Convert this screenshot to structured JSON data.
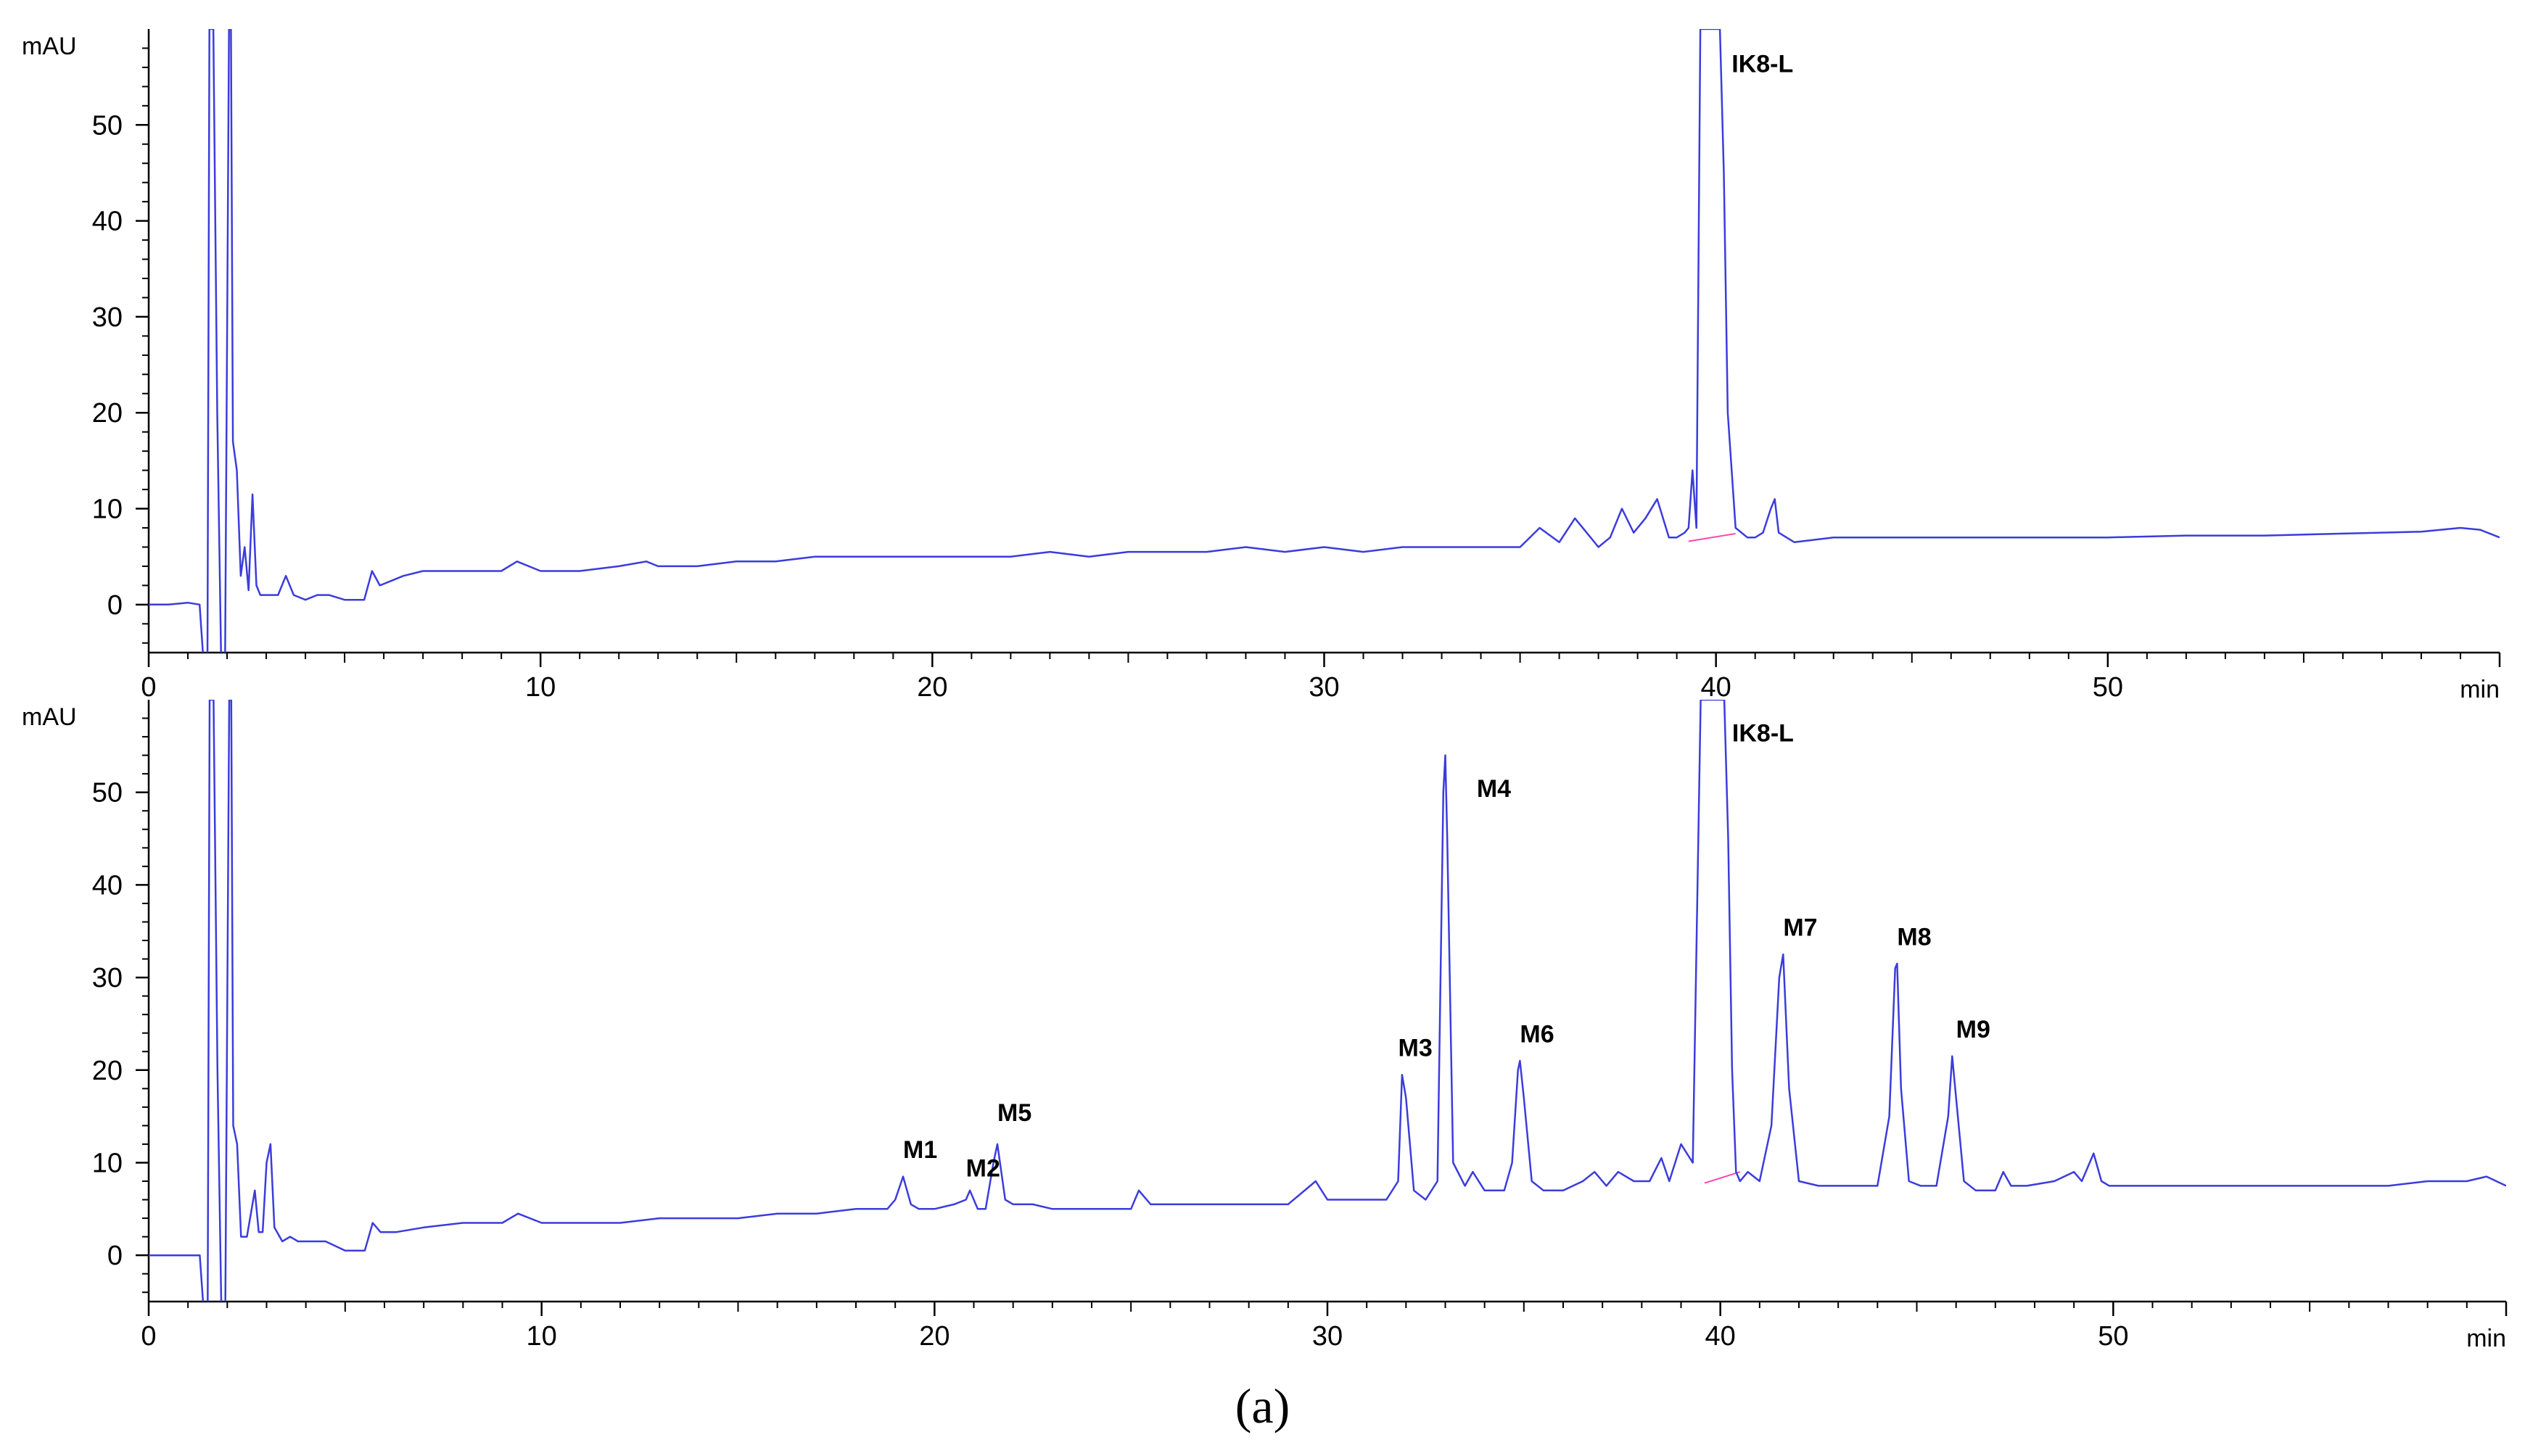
{
  "caption": "(a)",
  "chart_data": [
    {
      "type": "line",
      "title": "",
      "xlabel": "",
      "ylabel": "",
      "x_unit": "min",
      "y_unit": "mAU",
      "xlim": [
        0,
        60
      ],
      "ylim": [
        -5,
        60
      ],
      "x_major_ticks": [
        0,
        10,
        20,
        30,
        40,
        50
      ],
      "y_major_ticks": [
        0,
        10,
        20,
        30,
        40,
        50
      ],
      "grid": false,
      "series_color": "#3c3cdc",
      "baseline_color": "#ff44aa",
      "baseline_segment": {
        "x": [
          39.3,
          40.5
        ],
        "y": [
          6.6,
          7.4
        ]
      },
      "series": [
        {
          "x": [
            0,
            0.5,
            1.0,
            1.3,
            1.4,
            1.5,
            1.55,
            1.6,
            1.65,
            1.75,
            1.85,
            1.95,
            2.05,
            2.1,
            2.15,
            2.25,
            2.35,
            2.45,
            2.55,
            2.65,
            2.75,
            2.85,
            3.0,
            3.3,
            3.5,
            3.7,
            4.0,
            4.3,
            4.6,
            5.0,
            5.5,
            5.7,
            5.9,
            6.2,
            6.5,
            7,
            8,
            9,
            9.4,
            10,
            11,
            12,
            12.7,
            13,
            14,
            15,
            16,
            17,
            18,
            19,
            20,
            21,
            22,
            23,
            24,
            25,
            26,
            27,
            28,
            29,
            30,
            31,
            32,
            33,
            34,
            35,
            35.5,
            36,
            36.4,
            36.7,
            37,
            37.3,
            37.6,
            37.9,
            38.2,
            38.5,
            38.8,
            39.0,
            39.2,
            39.3,
            39.4,
            39.5,
            39.6,
            39.7,
            39.8,
            39.9,
            40.0,
            40.1,
            40.2,
            40.3,
            40.5,
            40.8,
            41.0,
            41.2,
            41.4,
            41.5,
            41.6,
            41.8,
            42.0,
            43,
            44,
            45,
            46,
            47,
            48,
            49,
            50,
            52,
            54,
            56,
            58,
            59,
            59.5,
            60
          ],
          "y": [
            0,
            0,
            0.2,
            0,
            -6,
            -6,
            60,
            60,
            60,
            20,
            -6,
            -6,
            60,
            60,
            17,
            14,
            3,
            6,
            1.5,
            11.5,
            2,
            1,
            1,
            1,
            3,
            1,
            0.5,
            1,
            1,
            0.5,
            0.5,
            3.5,
            2,
            2.5,
            3,
            3.5,
            3.5,
            3.5,
            4.5,
            3.5,
            3.5,
            4,
            4.5,
            4,
            4,
            4.5,
            4.5,
            5,
            5,
            5,
            5,
            5,
            5,
            5.5,
            5,
            5.5,
            5.5,
            5.5,
            6,
            5.5,
            6,
            5.5,
            6,
            6,
            6,
            6,
            8,
            6.5,
            9,
            7.5,
            6,
            7,
            10,
            7.5,
            9,
            11,
            7,
            7,
            7.5,
            8,
            14,
            8,
            60,
            60,
            60,
            60,
            60,
            60,
            45,
            20,
            8,
            7,
            7,
            7.5,
            10,
            11,
            7.5,
            7,
            6.5,
            7,
            7,
            7,
            7,
            7,
            7,
            7,
            7,
            7.2,
            7.2,
            7.4,
            7.6,
            8.0,
            7.8,
            7.0
          ]
        }
      ],
      "annotations": [
        {
          "text": "IK8-L",
          "x": 40.4,
          "y": 55.5
        }
      ]
    },
    {
      "type": "line",
      "title": "",
      "xlabel": "",
      "ylabel": "",
      "x_unit": "min",
      "y_unit": "mAU",
      "xlim": [
        0,
        60
      ],
      "ylim": [
        -5,
        60
      ],
      "x_major_ticks": [
        0,
        10,
        20,
        30,
        40,
        50
      ],
      "y_major_ticks": [
        0,
        10,
        20,
        30,
        40,
        50
      ],
      "grid": false,
      "series_color": "#3c3cdc",
      "baseline_color": "#ff44aa",
      "baseline_segment": {
        "x": [
          39.6,
          40.5
        ],
        "y": [
          7.8,
          9.0
        ]
      },
      "series": [
        {
          "x": [
            0,
            0.5,
            1.0,
            1.3,
            1.4,
            1.5,
            1.55,
            1.6,
            1.65,
            1.75,
            1.85,
            1.95,
            2.05,
            2.1,
            2.15,
            2.25,
            2.35,
            2.5,
            2.7,
            2.8,
            2.9,
            3.0,
            3.1,
            3.2,
            3.4,
            3.6,
            3.8,
            4.0,
            4.5,
            5.0,
            5.5,
            5.7,
            5.9,
            6.3,
            7,
            8,
            9,
            9.4,
            10,
            11,
            12,
            13,
            14,
            15,
            16,
            17,
            18,
            18.8,
            19.0,
            19.2,
            19.4,
            19.6,
            20,
            20.5,
            20.8,
            20.9,
            21.1,
            21.3,
            21.5,
            21.6,
            21.8,
            22.0,
            22.5,
            23,
            24,
            25,
            25.2,
            25.5,
            26,
            27,
            28,
            29,
            29.7,
            30,
            30.5,
            31,
            31.5,
            31.8,
            31.9,
            32.0,
            32.2,
            32.5,
            32.8,
            32.95,
            33.0,
            33.05,
            33.2,
            33.5,
            33.7,
            34.0,
            34.5,
            34.7,
            34.85,
            34.9,
            35.0,
            35.2,
            35.5,
            36,
            36.5,
            36.8,
            37.1,
            37.4,
            37.8,
            38.2,
            38.5,
            38.7,
            39.0,
            39.3,
            39.5,
            39.6,
            39.7,
            39.8,
            39.9,
            40.0,
            40.1,
            40.2,
            40.3,
            40.4,
            40.5,
            40.7,
            41.0,
            41.3,
            41.5,
            41.6,
            41.75,
            42.0,
            42.5,
            43,
            43.5,
            44.0,
            44.3,
            44.45,
            44.5,
            44.6,
            44.8,
            45.1,
            45.5,
            45.8,
            45.9,
            46.0,
            46.2,
            46.5,
            47,
            47.2,
            47.4,
            47.8,
            48.5,
            49.0,
            49.2,
            49.5,
            49.7,
            49.9,
            50.3,
            51,
            52,
            53,
            54,
            55,
            56,
            57,
            58,
            59,
            59.5,
            60
          ],
          "y": [
            0,
            0,
            0,
            0,
            -6,
            -6,
            60,
            60,
            60,
            20,
            -6,
            -6,
            60,
            60,
            14,
            12,
            2,
            2,
            7,
            2.5,
            2.5,
            10,
            12,
            3,
            1.5,
            2,
            1.5,
            1.5,
            1.5,
            0.5,
            0.5,
            3.5,
            2.5,
            2.5,
            3,
            3.5,
            3.5,
            4.5,
            3.5,
            3.5,
            3.5,
            4,
            4,
            4,
            4.5,
            4.5,
            5,
            5,
            6,
            8.5,
            5.5,
            5,
            5,
            5.5,
            6,
            7,
            5,
            5,
            10,
            12,
            6,
            5.5,
            5.5,
            5,
            5,
            5,
            7,
            5.5,
            5.5,
            5.5,
            5.5,
            5.5,
            8,
            6,
            6,
            6,
            6,
            8,
            19.5,
            17,
            7,
            6,
            8,
            50,
            54,
            45,
            10,
            7.5,
            9,
            7,
            7,
            10,
            20,
            21,
            17,
            8,
            7,
            7,
            8,
            9,
            7.5,
            9,
            8,
            8,
            10.5,
            8,
            12,
            10,
            60,
            60,
            60,
            60,
            60,
            60,
            60,
            45,
            20,
            9,
            8,
            9,
            8,
            14,
            30,
            32.5,
            18,
            8,
            7.5,
            7.5,
            7.5,
            7.5,
            15,
            31,
            31.5,
            18,
            8,
            7.5,
            7.5,
            15,
            21.5,
            17,
            8,
            7,
            7,
            9,
            7.5,
            7.5,
            8,
            9,
            8,
            11,
            8,
            7.5,
            7.5,
            7.5,
            7.5,
            7.5,
            7.5,
            7.5,
            7.5,
            7.5,
            8,
            8,
            8.5,
            7.5
          ]
        }
      ],
      "annotations": [
        {
          "text": "M1",
          "x": 19.2,
          "y": 10.5
        },
        {
          "text": "M2",
          "x": 20.8,
          "y": 8.5
        },
        {
          "text": "M5",
          "x": 21.6,
          "y": 14.5
        },
        {
          "text": "M3",
          "x": 31.8,
          "y": 21.5
        },
        {
          "text": "M4",
          "x": 33.8,
          "y": 49.5
        },
        {
          "text": "M6",
          "x": 34.9,
          "y": 23.0
        },
        {
          "text": "IK8-L",
          "x": 40.3,
          "y": 55.5
        },
        {
          "text": "M7",
          "x": 41.6,
          "y": 34.5
        },
        {
          "text": "M8",
          "x": 44.5,
          "y": 33.5
        },
        {
          "text": "M9",
          "x": 46.0,
          "y": 23.5
        }
      ]
    }
  ]
}
